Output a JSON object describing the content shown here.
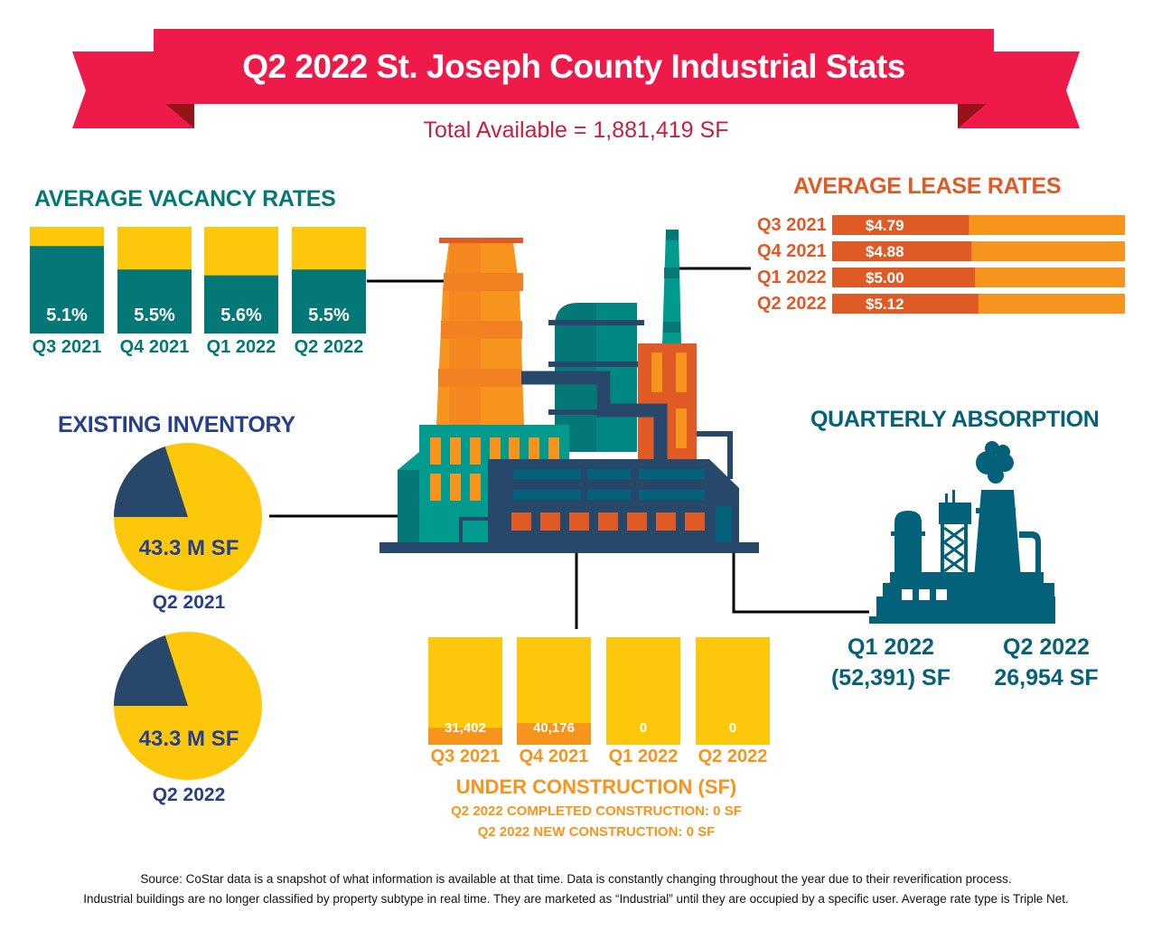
{
  "header": {
    "title": "Q2 2022 St. Joseph County Industrial Stats",
    "subtitle": "Total Available = 1,881,419 SF"
  },
  "colors": {
    "banner": "#ee1a4a",
    "banner_fold": "#95141a",
    "teal": "#047876",
    "yellow": "#fdc70c",
    "orange_dark": "#e05a26",
    "orange_light": "#f7941d",
    "navy": "#27408b",
    "pie_dark": "#27486a",
    "absorption_teal": "#04617a"
  },
  "chart_data": [
    {
      "id": "vacancy",
      "type": "bar",
      "title": "AVERAGE VACANCY RATES",
      "categories": [
        "Q3 2021",
        "Q4 2021",
        "Q1 2022",
        "Q2 2022"
      ],
      "values": [
        5.1,
        5.5,
        5.6,
        5.5
      ],
      "value_labels": [
        "5.1%",
        "5.5%",
        "5.6%",
        "5.5%"
      ],
      "unit": "%"
    },
    {
      "id": "lease",
      "type": "bar",
      "orientation": "horizontal",
      "title": "AVERAGE LEASE RATES",
      "categories": [
        "Q3 2021",
        "Q4 2021",
        "Q1 2022",
        "Q2 2022"
      ],
      "values": [
        4.79,
        4.88,
        5.0,
        5.12
      ],
      "value_labels": [
        "$4.79",
        "$4.88",
        "$5.00",
        "$5.12"
      ],
      "xlim": [
        0,
        10.25
      ],
      "unit": "$/SF"
    },
    {
      "id": "inventory",
      "type": "pie",
      "title": "EXISTING INVENTORY",
      "pies": [
        {
          "label": "Q2 2021",
          "value_label": "43.3 M SF",
          "value": 43.3,
          "dark_share": 0.2
        },
        {
          "label": "Q2 2022",
          "value_label": "43.3 M SF",
          "value": 43.3,
          "dark_share": 0.2
        }
      ]
    },
    {
      "id": "construction",
      "type": "bar",
      "title": "UNDER CONSTRUCTION (SF)",
      "categories": [
        "Q3 2021",
        "Q4 2021",
        "Q1 2022",
        "Q2 2022"
      ],
      "values": [
        31402,
        40176,
        0,
        0
      ],
      "value_labels": [
        "31,402",
        "40,176",
        "0",
        "0"
      ],
      "ylim": [
        0,
        180000
      ],
      "notes": [
        "Q2 2022 COMPLETED CONSTRUCTION: 0 SF",
        "Q2 2022 NEW CONSTRUCTION: 0 SF"
      ]
    },
    {
      "id": "absorption",
      "type": "table",
      "title": "QUARTERLY ABSORPTION",
      "rows": [
        {
          "quarter": "Q1 2022",
          "value": -52391,
          "value_label": "(52,391) SF"
        },
        {
          "quarter": "Q2 2022",
          "value": 26954,
          "value_label": "26,954 SF"
        }
      ]
    }
  ],
  "footer": {
    "line1": "Source: CoStar data is a snapshot of what information is available at that time. Data is constantly changing throughout the year due to their reverification process.",
    "line2": "Industrial buildings are no longer classified by property subtype in real time. They are marketed as “Industrial” until they are occupied by a specific user. Average rate type is Triple Net."
  },
  "icons": {
    "factory_illustration": "factory-illustration-icon",
    "absorption_factory": "factory-silhouette-icon"
  }
}
